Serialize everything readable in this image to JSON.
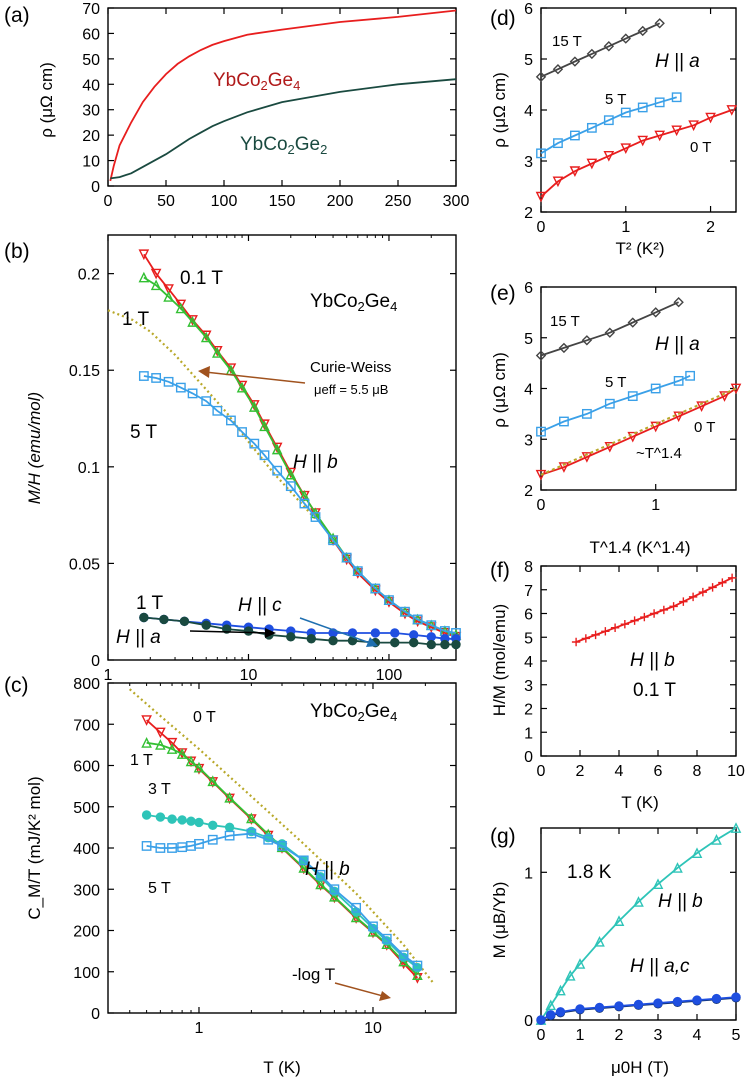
{
  "colors": {
    "red": "#e81e1e",
    "darkred": "#b01515",
    "green": "#33c033",
    "darkgreen": "#1a7a2e",
    "lightblue": "#3aa0e8",
    "blue": "#1f4fe0",
    "teal": "#1a4a40",
    "cyan": "#2ec4b8",
    "gray": "#444444",
    "cw": "#b8a82a",
    "brown": "#a0521e",
    "navy": "#10306a",
    "ann_ycg4": "#b01a1a",
    "ann_ycg2": "#1a4a40"
  },
  "chart_data": [
    {
      "id": "a",
      "panel_label": "(a)",
      "type": "line",
      "xlabel": "",
      "ylabel": "ρ (μΩ cm)",
      "xlim": [
        0,
        300
      ],
      "ylim": [
        0,
        70
      ],
      "xticks": [
        "0",
        "50",
        "100",
        "150",
        "200",
        "250",
        "300"
      ],
      "yticks": [
        "0",
        "10",
        "20",
        "30",
        "40",
        "50",
        "60",
        "70"
      ],
      "series": [
        {
          "name": "YbCo2Ge4",
          "label_parts": [
            "YbCo",
            "2",
            "Ge",
            "4"
          ],
          "color": "red",
          "x": [
            2,
            5,
            10,
            20,
            30,
            40,
            50,
            60,
            70,
            80,
            90,
            100,
            120,
            150,
            200,
            250,
            300
          ],
          "y": [
            2,
            8,
            16,
            25,
            33,
            39,
            44,
            48,
            51,
            53.5,
            55.5,
            57,
            59.5,
            61.5,
            64.5,
            66.5,
            69
          ]
        },
        {
          "name": "YbCo2Ge2",
          "label_parts": [
            "YbCo",
            "2",
            "Ge",
            "2"
          ],
          "color": "teal",
          "x": [
            2,
            10,
            20,
            30,
            40,
            50,
            60,
            70,
            80,
            90,
            100,
            120,
            150,
            200,
            250,
            300
          ],
          "y": [
            3,
            3.5,
            5,
            7.5,
            10,
            12.5,
            15.5,
            18.5,
            21,
            23.5,
            25.5,
            29,
            33,
            37,
            40,
            42
          ]
        }
      ]
    },
    {
      "id": "b",
      "panel_label": "(b)",
      "type": "scatter",
      "xscale": "log",
      "xlabel": "",
      "ylabel": "M/H (emu/mol)",
      "xlim": [
        1,
        300
      ],
      "ylim": [
        0,
        0.22
      ],
      "xticks": [
        "1",
        "10",
        "100"
      ],
      "yticks": [
        "0",
        "0.05",
        "0.1",
        "0.15",
        "0.2"
      ],
      "compound": "YbCo2Ge4",
      "compound_parts": [
        "YbCo",
        "2",
        "Ge",
        "4"
      ],
      "field_label": "H || b",
      "field_c": "H || c",
      "field_a": "H || a",
      "cw_text": "Curie-Weiss",
      "cw_mu": "μeff = 5.5 μB",
      "series": [
        {
          "name": "0.1 T",
          "color": "red",
          "marker": "tri-down",
          "x": [
            1.8,
            2.2,
            2.7,
            3.3,
            4,
            5,
            6,
            7.5,
            9,
            11,
            13,
            16,
            20,
            25,
            30,
            40,
            50,
            60,
            80,
            100,
            130,
            160,
            200,
            250,
            300
          ],
          "y": [
            0.21,
            0.2,
            0.192,
            0.184,
            0.176,
            0.168,
            0.16,
            0.151,
            0.142,
            0.132,
            0.122,
            0.11,
            0.097,
            0.085,
            0.076,
            0.062,
            0.052,
            0.045,
            0.036,
            0.03,
            0.024,
            0.02,
            0.017,
            0.014,
            0.012
          ]
        },
        {
          "name": "1 T",
          "color": "green",
          "marker": "tri-up",
          "x": [
            1.8,
            2.2,
            2.7,
            3.3,
            4,
            5,
            6,
            7.5,
            9,
            11,
            13,
            16,
            20,
            25,
            30,
            40,
            50,
            60,
            80,
            100,
            130,
            160,
            200,
            250,
            300
          ],
          "y": [
            0.198,
            0.194,
            0.188,
            0.182,
            0.175,
            0.167,
            0.159,
            0.15,
            0.141,
            0.131,
            0.121,
            0.109,
            0.096,
            0.085,
            0.076,
            0.063,
            0.053,
            0.046,
            0.037,
            0.031,
            0.025,
            0.021,
            0.018,
            0.015,
            0.013
          ]
        },
        {
          "name": "5 T",
          "color": "lightblue",
          "marker": "square",
          "x": [
            1.8,
            2.2,
            2.7,
            3.3,
            4,
            5,
            6,
            7.5,
            9,
            11,
            13,
            16,
            20,
            25,
            30,
            40,
            50,
            60,
            80,
            100,
            130,
            160,
            200,
            250,
            300
          ],
          "y": [
            0.147,
            0.146,
            0.144,
            0.141,
            0.138,
            0.134,
            0.129,
            0.124,
            0.118,
            0.112,
            0.106,
            0.098,
            0.09,
            0.081,
            0.074,
            0.062,
            0.053,
            0.046,
            0.037,
            0.031,
            0.025,
            0.021,
            0.018,
            0.015,
            0.014
          ]
        },
        {
          "name": "H || c 1 T",
          "color": "blue",
          "marker": "circle",
          "x": [
            1.8,
            2.5,
            3.5,
            5,
            7,
            10,
            14,
            20,
            28,
            40,
            55,
            80,
            110,
            150,
            200,
            250,
            300
          ],
          "y": [
            0.022,
            0.021,
            0.02,
            0.019,
            0.018,
            0.017,
            0.016,
            0.015,
            0.014,
            0.014,
            0.014,
            0.014,
            0.014,
            0.013,
            0.012,
            0.011,
            0.011
          ]
        },
        {
          "name": "H || a 1 T",
          "color": "teal",
          "marker": "circle",
          "x": [
            1.8,
            2.5,
            3.5,
            5,
            7,
            10,
            14,
            20,
            28,
            40,
            55,
            80,
            110,
            150,
            200,
            250,
            300
          ],
          "y": [
            0.022,
            0.021,
            0.02,
            0.018,
            0.016,
            0.015,
            0.013,
            0.012,
            0.011,
            0.01,
            0.01,
            0.009,
            0.009,
            0.009,
            0.008,
            0.008,
            0.008
          ]
        }
      ],
      "curie_weiss": {
        "x": [
          1,
          1.5,
          2,
          3,
          5,
          7,
          10,
          15,
          20,
          30
        ],
        "y": [
          0.181,
          0.176,
          0.17,
          0.158,
          0.14,
          0.128,
          0.113,
          0.097,
          0.087,
          0.073
        ]
      }
    },
    {
      "id": "c",
      "panel_label": "(c)",
      "type": "scatter",
      "xscale": "log",
      "xlabel": "T (K)",
      "ylabel": "C_M/T (mJ/K² mol)",
      "xlim": [
        0.3,
        30
      ],
      "ylim": [
        0,
        800
      ],
      "xticks": [
        "1",
        "10"
      ],
      "yticks": [
        "0",
        "100",
        "200",
        "300",
        "400",
        "500",
        "600",
        "700",
        "800"
      ],
      "compound": "YbCo2Ge4",
      "compound_parts": [
        "YbCo",
        "2",
        "Ge",
        "4"
      ],
      "field_label": "H || b",
      "fit_text": "-log T",
      "series": [
        {
          "name": "0 T",
          "color": "red",
          "marker": "tri-down",
          "x": [
            0.5,
            0.6,
            0.7,
            0.8,
            0.9,
            1.0,
            1.2,
            1.5,
            2,
            2.5,
            3,
            4,
            5,
            6,
            8,
            10,
            12,
            15,
            18
          ],
          "y": [
            710,
            680,
            655,
            630,
            610,
            592,
            560,
            520,
            470,
            430,
            400,
            350,
            310,
            280,
            230,
            195,
            165,
            120,
            85
          ]
        },
        {
          "name": "1 T",
          "color": "green",
          "marker": "tri-up",
          "x": [
            0.5,
            0.6,
            0.7,
            0.8,
            0.9,
            1.0,
            1.2,
            1.5,
            2,
            2.5,
            3,
            4,
            5,
            6,
            8,
            10,
            12,
            15,
            18
          ],
          "y": [
            655,
            650,
            640,
            628,
            610,
            595,
            562,
            522,
            472,
            433,
            402,
            352,
            312,
            282,
            232,
            197,
            167,
            125,
            92
          ]
        },
        {
          "name": "3 T",
          "color": "cyan",
          "marker": "circle",
          "x": [
            0.5,
            0.6,
            0.7,
            0.8,
            0.9,
            1.0,
            1.2,
            1.5,
            2,
            2.5,
            3,
            4,
            5,
            6,
            8,
            10,
            12,
            15,
            18
          ],
          "y": [
            480,
            475,
            470,
            468,
            465,
            462,
            455,
            450,
            440,
            425,
            410,
            370,
            330,
            295,
            245,
            205,
            175,
            135,
            110
          ]
        },
        {
          "name": "5 T",
          "color": "lightblue",
          "marker": "square",
          "x": [
            0.5,
            0.6,
            0.7,
            0.8,
            0.9,
            1.0,
            1.2,
            1.5,
            2,
            2.5,
            3,
            4,
            5,
            6,
            8,
            10,
            12,
            15,
            18
          ],
          "y": [
            405,
            400,
            400,
            402,
            405,
            410,
            420,
            430,
            435,
            420,
            405,
            370,
            335,
            300,
            255,
            210,
            180,
            140,
            115
          ]
        }
      ],
      "log_fit": {
        "x": [
          0.4,
          0.6,
          1,
          2,
          4,
          8,
          15,
          22
        ],
        "y": [
          785,
          720,
          640,
          525,
          410,
          290,
          165,
          75
        ]
      }
    },
    {
      "id": "d",
      "panel_label": "(d)",
      "type": "scatter",
      "xlabel": "T² (K²)",
      "ylabel": "ρ (μΩ cm)",
      "xlim": [
        0,
        2.3
      ],
      "ylim": [
        2,
        6
      ],
      "xticks": [
        "0",
        "1",
        "2"
      ],
      "yticks": [
        "2",
        "3",
        "4",
        "5",
        "6"
      ],
      "field_label": "H || a",
      "series": [
        {
          "name": "15 T",
          "color": "gray",
          "marker": "diamond",
          "x": [
            0,
            0.2,
            0.4,
            0.6,
            0.8,
            1.0,
            1.2,
            1.4
          ],
          "y": [
            4.65,
            4.8,
            4.95,
            5.1,
            5.25,
            5.4,
            5.55,
            5.7
          ]
        },
        {
          "name": "5 T",
          "color": "lightblue",
          "marker": "square",
          "x": [
            0,
            0.2,
            0.4,
            0.6,
            0.8,
            1.0,
            1.2,
            1.4,
            1.6
          ],
          "y": [
            3.15,
            3.35,
            3.5,
            3.65,
            3.8,
            3.95,
            4.05,
            4.15,
            4.25
          ]
        },
        {
          "name": "0 T",
          "color": "red",
          "marker": "tri-down",
          "x": [
            0,
            0.2,
            0.4,
            0.6,
            0.8,
            1.0,
            1.2,
            1.4,
            1.6,
            1.8,
            2.0,
            2.25
          ],
          "y": [
            2.3,
            2.6,
            2.8,
            2.95,
            3.1,
            3.25,
            3.4,
            3.5,
            3.6,
            3.7,
            3.85,
            4.0
          ]
        }
      ]
    },
    {
      "id": "e",
      "panel_label": "(e)",
      "type": "scatter",
      "xlabel": "T^1.4 (K^1.4)",
      "ylabel": "ρ (μΩ cm)",
      "xlim": [
        0,
        1.7
      ],
      "ylim": [
        2,
        6
      ],
      "xticks": [
        "0",
        "1"
      ],
      "yticks": [
        "2",
        "3",
        "4",
        "5",
        "6"
      ],
      "field_label": "H || a",
      "fit_text": "~T^1.4",
      "series": [
        {
          "name": "15 T",
          "color": "gray",
          "marker": "diamond",
          "x": [
            0,
            0.2,
            0.4,
            0.6,
            0.8,
            1.0,
            1.2
          ],
          "y": [
            4.65,
            4.8,
            4.95,
            5.1,
            5.3,
            5.5,
            5.7
          ]
        },
        {
          "name": "5 T",
          "color": "lightblue",
          "marker": "square",
          "x": [
            0,
            0.2,
            0.4,
            0.6,
            0.8,
            1.0,
            1.2,
            1.3
          ],
          "y": [
            3.15,
            3.35,
            3.5,
            3.7,
            3.85,
            4.0,
            4.15,
            4.25
          ]
        },
        {
          "name": "0 T",
          "color": "red",
          "marker": "tri-down",
          "x": [
            0,
            0.2,
            0.4,
            0.6,
            0.8,
            1.0,
            1.2,
            1.4,
            1.6,
            1.7
          ],
          "y": [
            2.3,
            2.45,
            2.65,
            2.85,
            3.05,
            3.25,
            3.45,
            3.65,
            3.85,
            4.0
          ]
        }
      ],
      "fit": {
        "x": [
          0,
          1.7
        ],
        "y": [
          2.3,
          4.0
        ]
      }
    },
    {
      "id": "f",
      "panel_label": "(f)",
      "type": "scatter",
      "xlabel": "T (K)",
      "ylabel": "H/M (mol/emu)",
      "xlim": [
        0,
        10
      ],
      "ylim": [
        0,
        8
      ],
      "xticks": [
        "0",
        "2",
        "4",
        "6",
        "8",
        "10"
      ],
      "yticks": [
        "0",
        "1",
        "2",
        "3",
        "4",
        "5",
        "6",
        "7",
        "8"
      ],
      "field_label": "H || b",
      "field_value": "0.1 T",
      "series": [
        {
          "name": "H || b 0.1 T",
          "color": "red",
          "marker": "plus",
          "x": [
            1.8,
            2.3,
            2.8,
            3.3,
            3.8,
            4.3,
            4.8,
            5.3,
            5.8,
            6.3,
            6.8,
            7.3,
            7.8,
            8.3,
            8.8,
            9.3,
            9.8
          ],
          "y": [
            4.8,
            4.95,
            5.1,
            5.25,
            5.4,
            5.55,
            5.7,
            5.85,
            6.0,
            6.15,
            6.3,
            6.5,
            6.7,
            6.9,
            7.1,
            7.3,
            7.5
          ]
        }
      ]
    },
    {
      "id": "g",
      "panel_label": "(g)",
      "type": "line",
      "xlabel": "μ0H (T)",
      "ylabel": "M (μB/Yb)",
      "xlim": [
        0,
        5
      ],
      "ylim": [
        0,
        1.3
      ],
      "xticks": [
        "0",
        "1",
        "2",
        "3",
        "4",
        "5"
      ],
      "yticks": [
        "0",
        "1"
      ],
      "temperature": "1.8 K",
      "label_b": "H || b",
      "label_ac": "H || a,c",
      "series": [
        {
          "name": "H || b",
          "color": "cyan",
          "marker": "tri-up",
          "x": [
            0,
            0.25,
            0.5,
            0.75,
            1,
            1.5,
            2,
            2.5,
            3,
            3.5,
            4,
            4.5,
            5
          ],
          "y": [
            0,
            0.1,
            0.2,
            0.3,
            0.38,
            0.53,
            0.67,
            0.8,
            0.92,
            1.03,
            1.13,
            1.22,
            1.3
          ]
        },
        {
          "name": "H || a",
          "color": "navy",
          "marker": "circle",
          "x": [
            0,
            0.25,
            0.5,
            1,
            1.5,
            2,
            2.5,
            3,
            3.5,
            4,
            4.5,
            5
          ],
          "y": [
            0,
            0.03,
            0.05,
            0.07,
            0.08,
            0.09,
            0.1,
            0.11,
            0.12,
            0.13,
            0.14,
            0.15
          ]
        },
        {
          "name": "H || c",
          "color": "blue",
          "marker": "circle",
          "x": [
            0,
            0.25,
            0.5,
            1,
            1.5,
            2,
            2.5,
            3,
            3.5,
            4,
            4.5,
            5
          ],
          "y": [
            0,
            0.035,
            0.055,
            0.075,
            0.085,
            0.095,
            0.105,
            0.115,
            0.125,
            0.135,
            0.145,
            0.155
          ]
        }
      ]
    }
  ]
}
